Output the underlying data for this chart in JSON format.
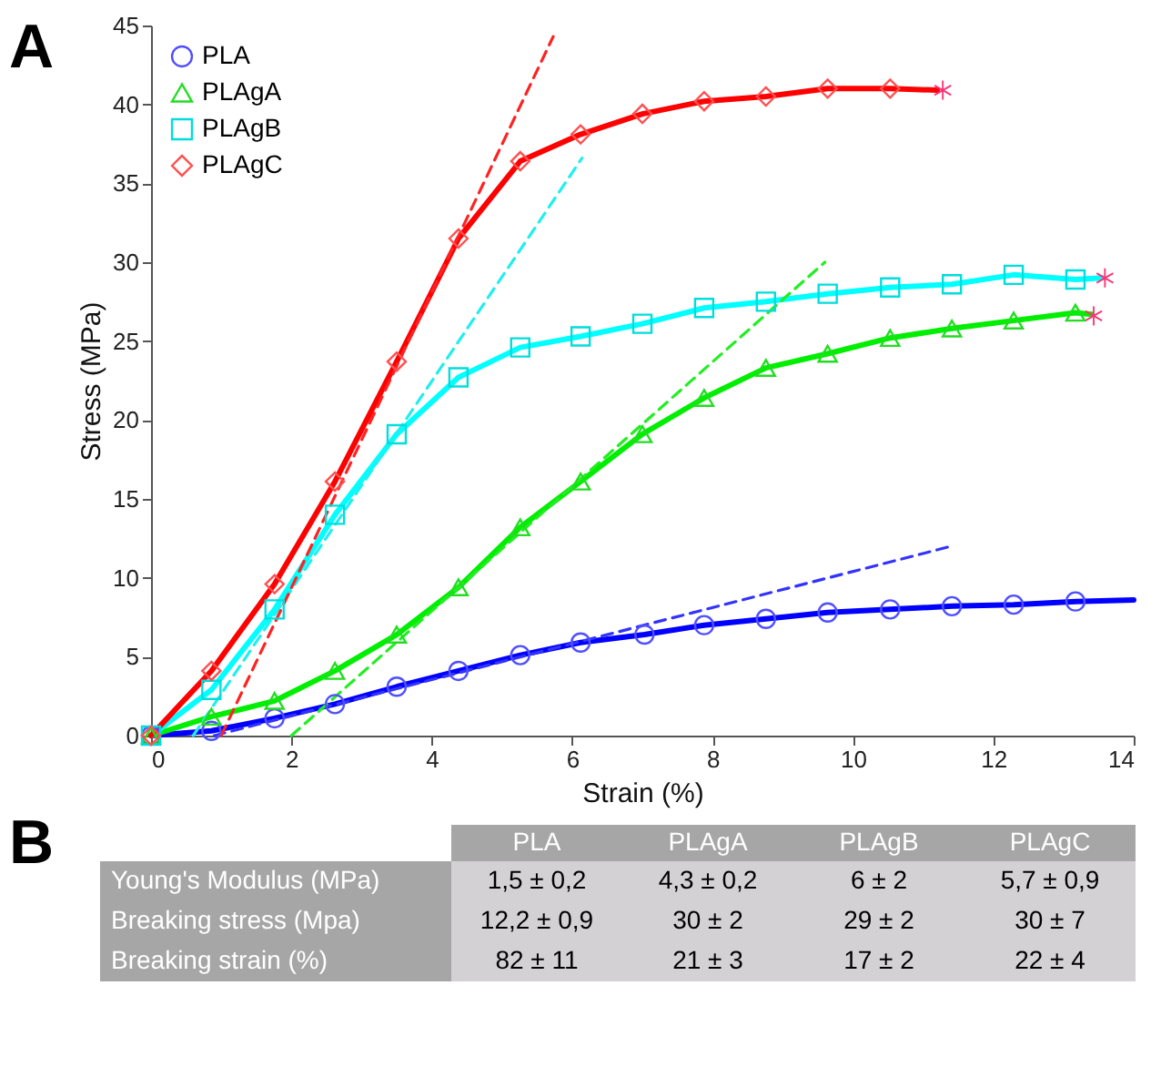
{
  "chart_data": [
    {
      "type": "line",
      "xlabel": "Strain (%)",
      "ylabel": "Stress (MPa)",
      "xlim": [
        0,
        14
      ],
      "ylim": [
        0,
        45
      ],
      "xticks": [
        0,
        2,
        4,
        6,
        8,
        10,
        12,
        14
      ],
      "yticks": [
        0,
        5,
        10,
        15,
        20,
        25,
        30,
        35,
        40,
        45
      ],
      "grid": false,
      "legend": "top left",
      "annotations": [
        "A"
      ],
      "series": [
        {
          "type": "line",
          "color": "#0000ff",
          "line_style": "solid",
          "marker": "none",
          "x": [
            0,
            0.86,
            1.76,
            2.62,
            3.5,
            4.38,
            5.26,
            6.12,
            7.03,
            7.88,
            8.76,
            9.64,
            10.53,
            11.41,
            12.29,
            13.17,
            14
          ],
          "values": [
            0,
            0.3,
            1.1,
            2.0,
            3.1,
            4.1,
            5.1,
            5.9,
            6.4,
            7.0,
            7.4,
            7.8,
            8.0,
            8.2,
            8.3,
            8.5,
            8.6
          ]
        },
        {
          "type": "line",
          "color": "#00ee00",
          "line_style": "solid",
          "marker": "none",
          "x": [
            0,
            0.86,
            1.76,
            2.62,
            3.5,
            4.38,
            5.26,
            6.12,
            7.0,
            7.88,
            8.76,
            9.64,
            10.53,
            11.41,
            12.29,
            13.17,
            13.4
          ],
          "values": [
            0,
            1.2,
            2.2,
            4.1,
            6.4,
            9.4,
            13.2,
            16.1,
            19.1,
            21.4,
            23.3,
            24.2,
            25.2,
            25.8,
            26.3,
            26.8,
            26.7
          ]
        },
        {
          "type": "line",
          "color": "#00ffff",
          "line_style": "solid",
          "marker": "none",
          "x": [
            0,
            0.86,
            1.76,
            2.62,
            3.5,
            4.38,
            5.26,
            6.12,
            7.0,
            7.88,
            8.76,
            9.64,
            10.53,
            11.41,
            12.29,
            13.17,
            13.55
          ],
          "values": [
            0,
            2.9,
            8.0,
            14.0,
            19.1,
            22.7,
            24.6,
            25.3,
            26.1,
            27.1,
            27.5,
            28.0,
            28.4,
            28.6,
            29.2,
            28.9,
            29.0
          ]
        },
        {
          "type": "line",
          "color": "#ff0000",
          "line_style": "solid",
          "marker": "none",
          "x": [
            0,
            0.86,
            1.76,
            2.62,
            3.5,
            4.38,
            5.26,
            6.12,
            7.0,
            7.88,
            8.76,
            9.64,
            10.53,
            11.2
          ],
          "values": [
            0,
            4.1,
            9.6,
            16.1,
            23.7,
            31.5,
            36.4,
            38.1,
            39.4,
            40.2,
            40.5,
            41.0,
            41.0,
            40.9
          ]
        },
        {
          "type": "line",
          "color": "#3333ff",
          "line_style": "dashed",
          "marker": "none",
          "x": [
            0.9,
            11.4
          ],
          "values": [
            0,
            12
          ]
        },
        {
          "type": "line",
          "color": "#22ee22",
          "line_style": "dashed",
          "marker": "none",
          "x": [
            2.0,
            9.6
          ],
          "values": [
            0,
            30
          ]
        },
        {
          "type": "line",
          "color": "#22eeee",
          "line_style": "dashed",
          "marker": "none",
          "x": [
            0.6,
            6.14
          ],
          "values": [
            0,
            36.6
          ]
        },
        {
          "type": "line",
          "color": "#ff2222",
          "line_style": "dashed",
          "marker": "none",
          "x": [
            1.0,
            5.73
          ],
          "values": [
            0,
            44.3
          ]
        },
        {
          "type": "scatter",
          "name": "PLA",
          "color": "#5050ff",
          "marker": "circle",
          "x": [
            0,
            0.86,
            1.76,
            2.62,
            3.5,
            4.38,
            5.26,
            6.12,
            7.03,
            7.88,
            8.76,
            9.64,
            10.53,
            11.41,
            12.29,
            13.17
          ],
          "values": [
            0,
            0.3,
            1.1,
            2.0,
            3.1,
            4.1,
            5.1,
            5.9,
            6.4,
            7.0,
            7.4,
            7.8,
            8.0,
            8.2,
            8.3,
            8.5
          ]
        },
        {
          "type": "scatter",
          "name": "PLAgA",
          "color": "#22dd22",
          "marker": "triangle",
          "x": [
            0,
            0.86,
            1.76,
            2.62,
            3.5,
            4.38,
            5.26,
            6.12,
            7.0,
            7.88,
            8.76,
            9.64,
            10.53,
            11.41,
            12.29,
            13.17
          ],
          "values": [
            0,
            1.2,
            2.2,
            4.1,
            6.4,
            9.4,
            13.2,
            16.1,
            19.1,
            21.4,
            23.3,
            24.2,
            25.2,
            25.8,
            26.3,
            26.8
          ]
        },
        {
          "type": "scatter",
          "name": "PLAgB",
          "color": "#00dddd",
          "marker": "square",
          "x": [
            0,
            0.86,
            1.76,
            2.62,
            3.5,
            4.38,
            5.26,
            6.12,
            7.0,
            7.88,
            8.76,
            9.64,
            10.53,
            11.41,
            12.29,
            13.17
          ],
          "values": [
            0,
            2.9,
            8.0,
            14.0,
            19.1,
            22.7,
            24.6,
            25.3,
            26.1,
            27.1,
            27.5,
            28.0,
            28.4,
            28.6,
            29.2,
            28.9
          ]
        },
        {
          "type": "scatter",
          "name": "PLAgC",
          "color": "#ff5050",
          "marker": "diamond",
          "x": [
            0,
            0.86,
            1.76,
            2.62,
            3.5,
            4.38,
            5.26,
            6.12,
            7.0,
            7.88,
            8.76,
            9.64,
            10.53
          ],
          "values": [
            0,
            4.1,
            9.6,
            16.1,
            23.7,
            31.5,
            36.4,
            38.1,
            39.4,
            40.2,
            40.5,
            41.0,
            41.0
          ]
        },
        {
          "type": "scatter",
          "color": "#ff3377",
          "marker": "cross",
          "x": [
            11.28,
            13.43,
            13.59
          ],
          "values": [
            40.9,
            26.6,
            29.0
          ]
        }
      ]
    },
    {
      "type": "other",
      "title": "B",
      "annotations": [
        "PLA",
        "PLAgA",
        "PLAgB",
        "PLAgC",
        "Young's Modulus (MPa)",
        "1,5 ± 0,2",
        "4,3 ± 0,2",
        "6 ± 2",
        "5,7 ± 0,9",
        "Breaking stress (Mpa)",
        "12,2 ± 0,9",
        "30 ± 2",
        "29 ± 2",
        "30 ± 7",
        "Breaking strain (%)",
        "82 ± 11",
        "21 ± 3",
        "17 ± 2",
        "22 ± 4"
      ]
    }
  ]
}
